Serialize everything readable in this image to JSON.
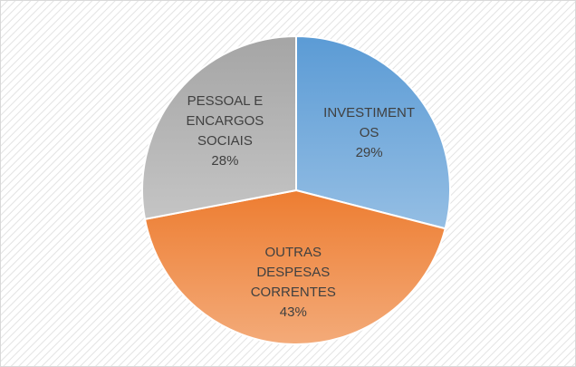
{
  "chart_data": {
    "type": "pie",
    "categories": [
      "INVESTIMENTOS",
      "OUTRAS DESPESAS CORRENTES",
      "PESSOAL E ENCARGOS SOCIAIS"
    ],
    "values": [
      29,
      43,
      28
    ],
    "value_labels": [
      "29%",
      "43%",
      "28%"
    ],
    "colors": [
      "#5b9bd5",
      "#ed7d31",
      "#a5a5a5"
    ]
  }
}
